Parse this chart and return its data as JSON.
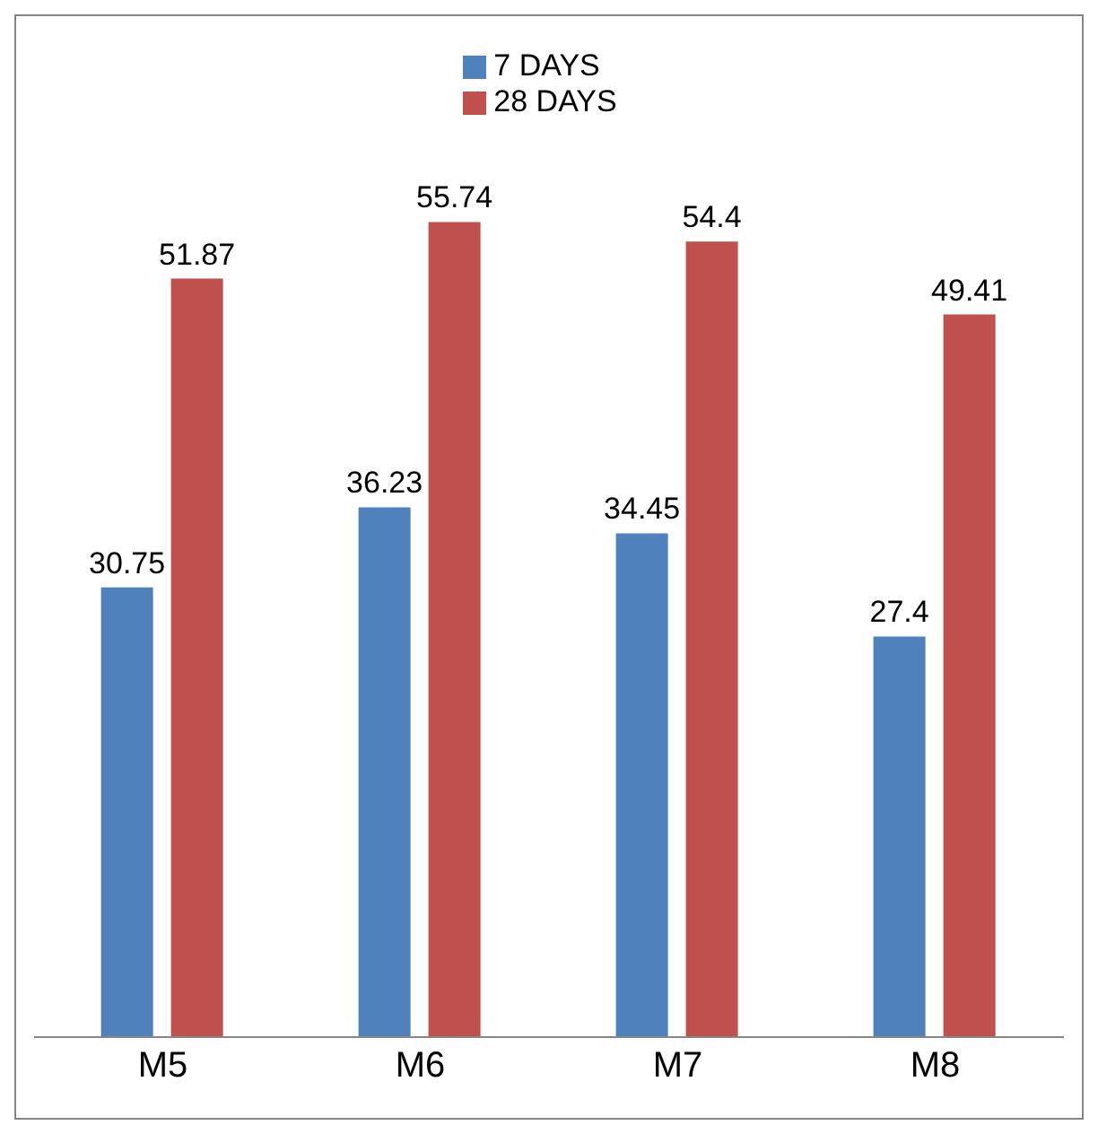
{
  "chart_data": {
    "type": "bar",
    "categories": [
      "M5",
      "M6",
      "M7",
      "M8"
    ],
    "series": [
      {
        "name": "7 DAYS",
        "color": "#4f81bd",
        "values": [
          30.75,
          36.23,
          34.45,
          27.4
        ]
      },
      {
        "name": "28 DAYS",
        "color": "#c0504d",
        "values": [
          51.87,
          55.74,
          54.4,
          49.41
        ]
      }
    ],
    "data_labels": true,
    "legend": "top",
    "grid": false
  }
}
